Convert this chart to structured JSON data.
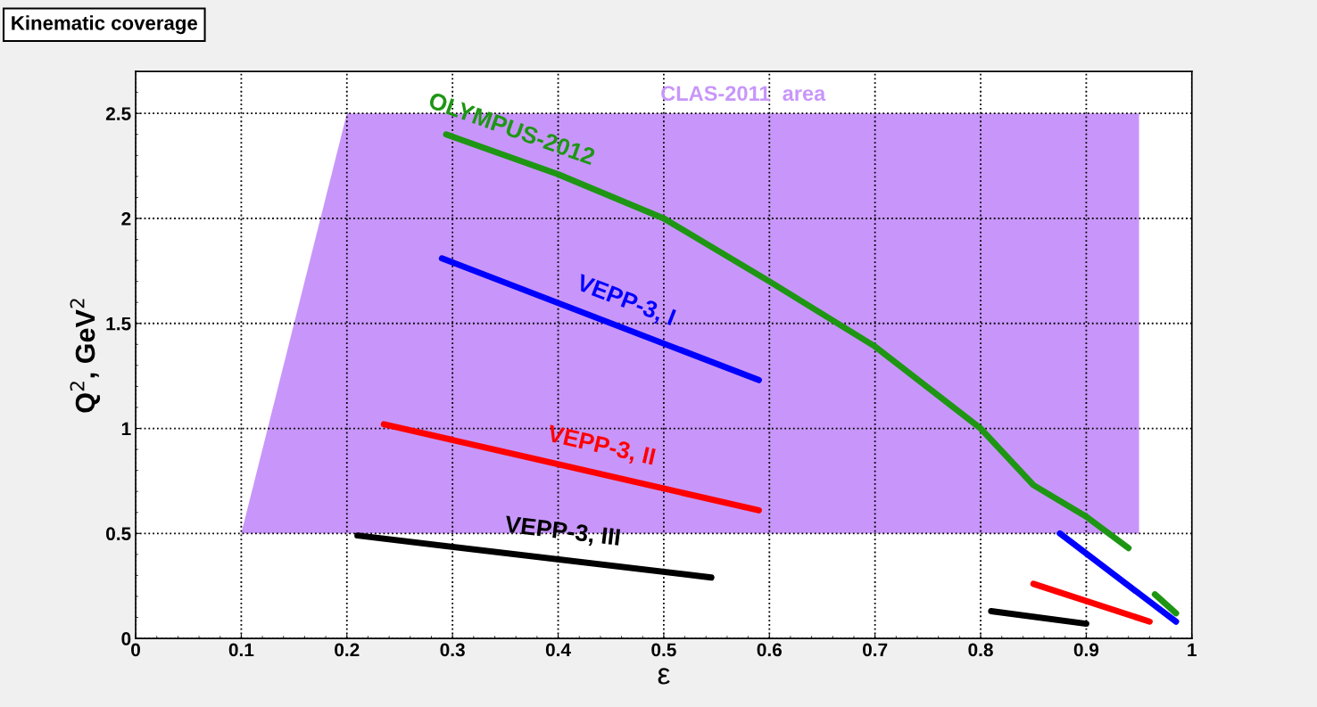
{
  "chart_data": {
    "type": "line",
    "title": "Kinematic coverage",
    "xlabel": "ε",
    "ylabel": "Q$^{2}$, GeV$^{2}$",
    "series": [
      {
        "name": "CLAS-2011  area",
        "type": "area",
        "color": "#c896fa",
        "x": [
          0.1,
          0.2,
          0.95,
          0.95,
          0.1
        ],
        "values": [
          0.5,
          2.5,
          2.5,
          0.5,
          0.5
        ]
      },
      {
        "name": "OLYMPUS-2012",
        "color": "#1e9614",
        "x": [
          0.294,
          0.4,
          0.5,
          0.6,
          0.7,
          0.8,
          0.85,
          0.9,
          0.94,
          0.95,
          0.965,
          0.985
        ],
        "values": [
          2.4,
          2.21,
          2.0,
          1.7,
          1.39,
          1.0,
          0.73,
          0.58,
          0.43,
          null,
          0.21,
          0.12
        ]
      },
      {
        "name": "VEPP-3, I",
        "color": "#0000ff",
        "x": [
          0.29,
          0.59,
          0.7,
          0.875,
          0.985
        ],
        "values": [
          1.81,
          1.23,
          null,
          0.5,
          0.08
        ]
      },
      {
        "name": "VEPP-3, II",
        "color": "#ff0000",
        "x": [
          0.235,
          0.59,
          0.7,
          0.85,
          0.96
        ],
        "values": [
          1.02,
          0.61,
          null,
          0.26,
          0.08
        ]
      },
      {
        "name": "VEPP-3, III",
        "color": "#000000",
        "x": [
          0.21,
          0.545,
          0.7,
          0.81,
          0.9
        ],
        "values": [
          0.49,
          0.29,
          null,
          0.13,
          0.07
        ]
      }
    ],
    "xlim": [
      0,
      1
    ],
    "ylim": [
      0,
      2.7
    ],
    "xticks": [
      0,
      0.1,
      0.2,
      0.3,
      0.4,
      0.5,
      0.6,
      0.7,
      0.8,
      0.9,
      1
    ],
    "yticks": [
      0,
      0.5,
      1,
      1.5,
      2,
      2.5
    ],
    "grid": true,
    "line_style": "solid",
    "marker": "none"
  }
}
